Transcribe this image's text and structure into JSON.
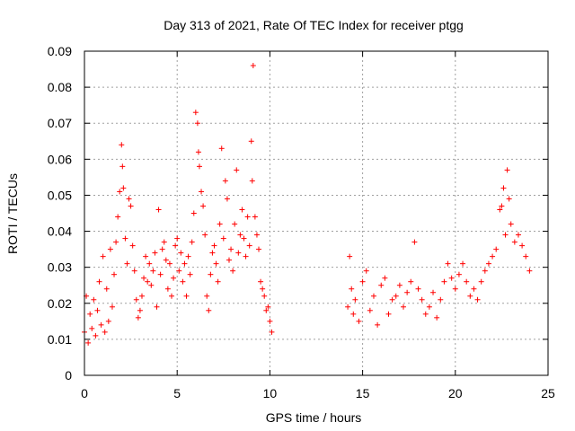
{
  "chart_data": {
    "type": "scatter",
    "title": "Day 313 of 2021, Rate Of TEC Index for receiver ptgg",
    "xlabel": "GPS time / hours",
    "ylabel": "ROTI / TECUs",
    "xlim": [
      0,
      25
    ],
    "ylim": [
      0,
      0.09
    ],
    "xticks": [
      0,
      5,
      10,
      15,
      20,
      25
    ],
    "yticks": [
      0,
      0.01,
      0.02,
      0.03,
      0.04,
      0.05,
      0.06,
      0.07,
      0.08,
      0.09
    ],
    "xtick_labels": [
      "0",
      "5",
      "10",
      "15",
      "20",
      "25"
    ],
    "ytick_labels": [
      "0",
      "0.01",
      "0.02",
      "0.03",
      "0.04",
      "0.05",
      "0.06",
      "0.07",
      "0.08",
      "0.09"
    ],
    "grid": true,
    "marker": "+",
    "marker_color": "#ff0000",
    "series": [
      {
        "x": [
          0.0,
          0.1,
          0.2,
          0.3,
          0.4,
          0.5,
          0.6,
          0.7,
          0.8,
          0.9,
          1.0,
          1.1,
          1.2,
          1.3,
          1.4,
          1.5,
          1.6,
          1.7,
          1.8,
          1.9,
          2.0,
          2.05,
          2.1,
          2.2,
          2.3,
          2.4,
          2.5,
          2.6,
          2.7,
          2.8,
          2.9,
          3.0,
          3.1,
          3.2,
          3.3,
          3.4,
          3.5,
          3.6,
          3.7,
          3.8,
          3.9,
          4.0,
          4.1,
          4.2,
          4.3,
          4.4,
          4.5,
          4.6,
          4.7,
          4.8,
          4.9,
          5.0,
          5.1,
          5.2,
          5.3,
          5.4,
          5.5,
          5.6,
          5.7,
          5.8,
          5.9,
          6.0,
          6.1,
          6.15,
          6.2,
          6.3,
          6.4,
          6.5,
          6.6,
          6.7,
          6.8,
          6.9,
          7.0,
          7.1,
          7.2,
          7.3,
          7.4,
          7.5,
          7.6,
          7.7,
          7.8,
          7.9,
          8.0,
          8.1,
          8.2,
          8.3,
          8.4,
          8.5,
          8.6,
          8.7,
          8.8,
          8.9,
          9.0,
          9.05,
          9.1,
          9.2,
          9.3,
          9.4,
          9.5,
          9.6,
          9.7,
          9.8,
          9.9,
          10.0,
          10.1,
          14.2,
          14.3,
          14.4,
          14.5,
          14.6,
          14.8,
          15.0,
          15.2,
          15.4,
          15.6,
          15.8,
          16.0,
          16.2,
          16.4,
          16.6,
          16.8,
          17.0,
          17.2,
          17.4,
          17.6,
          17.8,
          18.0,
          18.2,
          18.4,
          18.6,
          18.8,
          19.0,
          19.2,
          19.4,
          19.6,
          19.8,
          20.0,
          20.2,
          20.4,
          20.6,
          20.8,
          21.0,
          21.2,
          21.4,
          21.6,
          21.8,
          22.0,
          22.2,
          22.4,
          22.5,
          22.6,
          22.7,
          22.8,
          22.9,
          23.0,
          23.2,
          23.4,
          23.6,
          23.8,
          24.0
        ],
        "y": [
          0.012,
          0.022,
          0.009,
          0.017,
          0.013,
          0.021,
          0.011,
          0.018,
          0.026,
          0.014,
          0.033,
          0.012,
          0.024,
          0.015,
          0.035,
          0.019,
          0.028,
          0.037,
          0.044,
          0.051,
          0.064,
          0.058,
          0.052,
          0.038,
          0.031,
          0.049,
          0.047,
          0.036,
          0.029,
          0.021,
          0.016,
          0.018,
          0.022,
          0.027,
          0.033,
          0.026,
          0.031,
          0.025,
          0.029,
          0.034,
          0.019,
          0.046,
          0.028,
          0.035,
          0.037,
          0.032,
          0.024,
          0.031,
          0.022,
          0.027,
          0.036,
          0.038,
          0.029,
          0.034,
          0.026,
          0.031,
          0.022,
          0.033,
          0.028,
          0.037,
          0.045,
          0.073,
          0.07,
          0.062,
          0.058,
          0.051,
          0.047,
          0.039,
          0.022,
          0.018,
          0.028,
          0.034,
          0.036,
          0.031,
          0.026,
          0.042,
          0.063,
          0.038,
          0.054,
          0.049,
          0.032,
          0.035,
          0.029,
          0.042,
          0.057,
          0.034,
          0.039,
          0.046,
          0.038,
          0.033,
          0.044,
          0.036,
          0.065,
          0.054,
          0.086,
          0.044,
          0.039,
          0.035,
          0.026,
          0.024,
          0.022,
          0.018,
          0.019,
          0.015,
          0.012,
          0.019,
          0.033,
          0.024,
          0.017,
          0.021,
          0.015,
          0.026,
          0.029,
          0.018,
          0.022,
          0.014,
          0.025,
          0.027,
          0.017,
          0.021,
          0.022,
          0.025,
          0.019,
          0.023,
          0.026,
          0.037,
          0.024,
          0.021,
          0.017,
          0.019,
          0.023,
          0.016,
          0.021,
          0.026,
          0.031,
          0.027,
          0.024,
          0.028,
          0.031,
          0.026,
          0.022,
          0.024,
          0.021,
          0.026,
          0.029,
          0.031,
          0.033,
          0.035,
          0.046,
          0.047,
          0.052,
          0.039,
          0.057,
          0.049,
          0.042,
          0.037,
          0.039,
          0.036,
          0.033,
          0.029
        ]
      }
    ]
  }
}
